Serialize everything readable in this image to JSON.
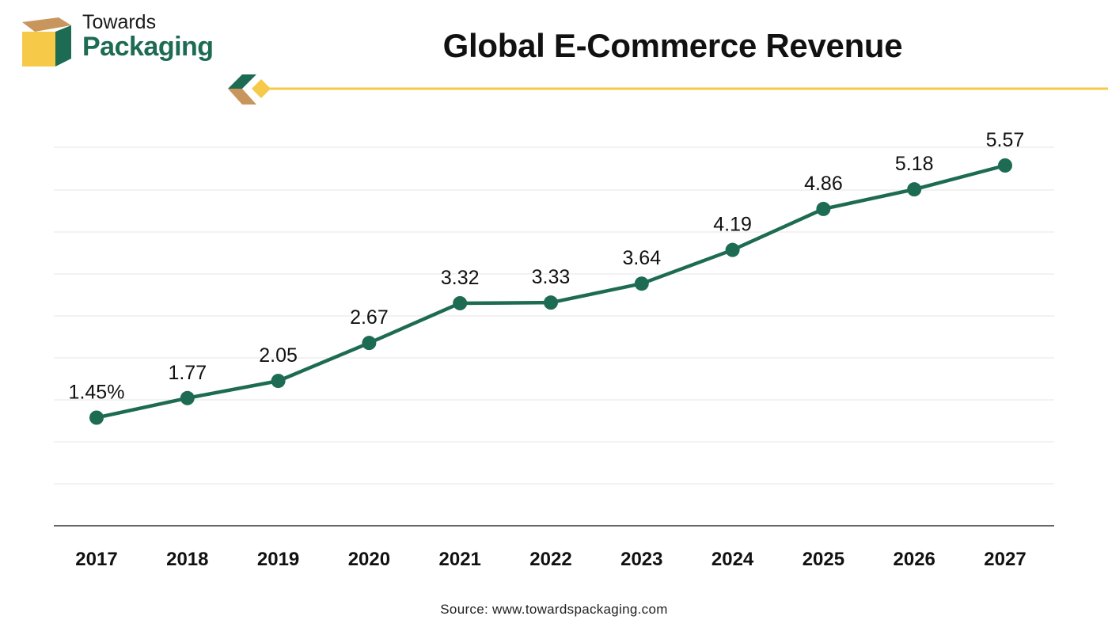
{
  "brand": {
    "top": "Towards",
    "main": "Packaging",
    "colors": {
      "green": "#1d6b53",
      "yellow": "#f7c948",
      "tan": "#c8955c"
    }
  },
  "chart_data": {
    "type": "line",
    "title": "Global E-Commerce Revenue",
    "categories": [
      "2017",
      "2018",
      "2019",
      "2020",
      "2021",
      "2022",
      "2023",
      "2024",
      "2025",
      "2026",
      "2027"
    ],
    "values": [
      1.45,
      1.77,
      2.05,
      2.67,
      3.32,
      3.33,
      3.64,
      4.19,
      4.86,
      5.18,
      5.57
    ],
    "labels": [
      "1.45%",
      "1.77",
      "2.05",
      "2.67",
      "3.32",
      "3.33",
      "3.64",
      "4.19",
      "4.86",
      "5.18",
      "5.57"
    ],
    "xlabel": "",
    "ylabel": "",
    "grid": true,
    "legend": "none",
    "series_color": "#1d6b53"
  },
  "footer": {
    "source": "Source: www.towardspackaging.com"
  }
}
